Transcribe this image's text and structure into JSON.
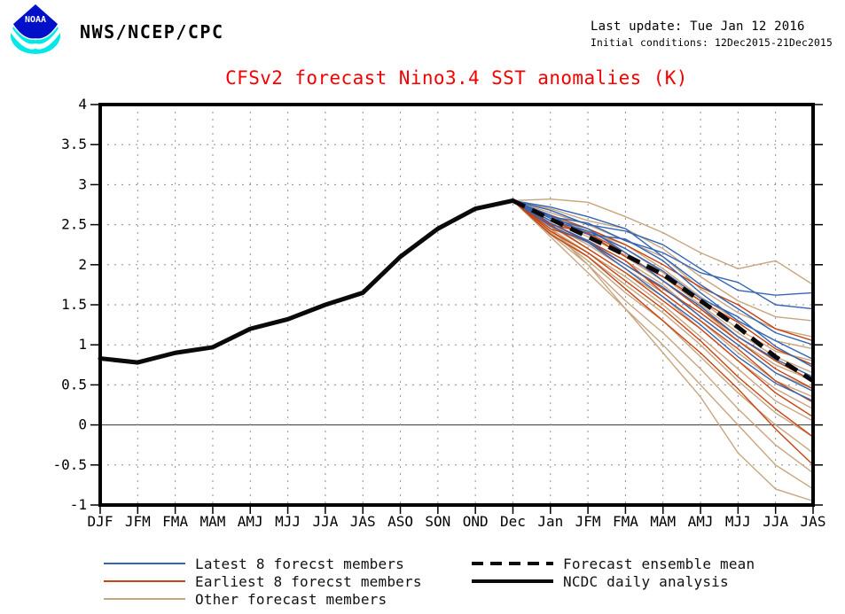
{
  "header": {
    "logo_text": "NOAA",
    "agency": "NWS/NCEP/CPC",
    "last_update": "Last update: Tue Jan 12 2016",
    "initial_conditions": "Initial conditions: 12Dec2015-21Dec2015"
  },
  "chart_data": {
    "type": "line",
    "title": "CFSv2 forecast Nino3.4 SST anomalies (K)",
    "title_color": "#f40000",
    "ylabel": "",
    "xlabel": "",
    "ylim": [
      -1,
      4
    ],
    "grid": true,
    "categories": [
      "DJF",
      "JFM",
      "FMA",
      "MAM",
      "AMJ",
      "MJJ",
      "JJA",
      "JAS",
      "ASO",
      "SON",
      "OND",
      "Dec",
      "Jan",
      "JFM",
      "FMA",
      "MAM",
      "AMJ",
      "MJJ",
      "JJA",
      "JAS"
    ],
    "ytick_values": [
      4,
      3.5,
      3,
      2.5,
      2,
      1.5,
      1,
      0.5,
      0,
      -0.5,
      -1
    ],
    "ytick_labels": [
      "4",
      "3.5",
      "3",
      "2.5",
      "2",
      "1.5",
      "1",
      "0.5",
      "0",
      "-0.5",
      "-1"
    ],
    "forecast_start_index": 11,
    "observed": {
      "name": "NCDC daily analysis",
      "color": "#0a0a0a",
      "start_index": 0,
      "values": [
        0.83,
        0.78,
        0.9,
        0.97,
        1.2,
        1.32,
        1.5,
        1.65,
        2.1,
        2.45,
        2.7,
        2.8
      ]
    },
    "mean": {
      "name": "Forecast ensemble mean",
      "color": "#0a0a0a",
      "dashed": true,
      "values": [
        2.8,
        2.57,
        2.35,
        2.12,
        1.88,
        1.55,
        1.22,
        0.85,
        0.55
      ]
    },
    "members": {
      "other": {
        "name": "Other forecast members",
        "color": "#c7a57f",
        "series": [
          [
            2.8,
            2.82,
            2.78,
            2.6,
            2.4,
            2.15,
            1.95,
            2.05,
            1.75
          ],
          [
            2.8,
            2.7,
            2.55,
            2.45,
            2.2,
            1.85,
            1.55,
            1.35,
            1.3
          ],
          [
            2.8,
            2.65,
            2.5,
            2.3,
            2.1,
            1.7,
            1.4,
            1.2,
            1.1
          ],
          [
            2.8,
            2.6,
            2.42,
            2.25,
            1.95,
            1.6,
            1.3,
            1.05,
            0.95
          ],
          [
            2.8,
            2.62,
            2.45,
            2.2,
            1.9,
            1.55,
            1.2,
            0.92,
            0.8
          ],
          [
            2.8,
            2.55,
            2.35,
            2.12,
            1.85,
            1.5,
            1.15,
            0.85,
            0.65
          ],
          [
            2.8,
            2.58,
            2.4,
            2.1,
            1.8,
            1.45,
            1.05,
            0.75,
            0.55
          ],
          [
            2.8,
            2.52,
            2.3,
            2.05,
            1.75,
            1.35,
            1.0,
            0.65,
            0.45
          ],
          [
            2.8,
            2.5,
            2.25,
            1.95,
            1.65,
            1.3,
            0.9,
            0.55,
            0.35
          ],
          [
            2.8,
            2.48,
            2.2,
            1.9,
            1.6,
            1.2,
            0.8,
            0.45,
            0.2
          ],
          [
            2.8,
            2.45,
            2.15,
            1.85,
            1.5,
            1.1,
            0.7,
            0.3,
            0.05
          ],
          [
            2.8,
            2.42,
            2.1,
            1.75,
            1.4,
            1.0,
            0.55,
            0.15,
            -0.15
          ],
          [
            2.8,
            2.4,
            2.05,
            1.65,
            1.3,
            0.85,
            0.4,
            0.0,
            -0.35
          ],
          [
            2.8,
            2.38,
            2.0,
            1.55,
            1.15,
            0.7,
            0.2,
            -0.25,
            -0.6
          ],
          [
            2.8,
            2.35,
            1.9,
            1.45,
            1.0,
            0.5,
            0.0,
            -0.5,
            -0.8
          ],
          [
            2.8,
            2.45,
            2.0,
            1.45,
            0.9,
            0.35,
            -0.35,
            -0.8,
            -0.95
          ]
        ]
      },
      "earliest": {
        "name": "Earliest 8 forecst members",
        "color": "#c8430f",
        "series": [
          [
            2.8,
            2.62,
            2.45,
            2.25,
            2.0,
            1.72,
            1.5,
            1.2,
            1.05
          ],
          [
            2.8,
            2.55,
            2.38,
            2.1,
            1.85,
            1.55,
            1.28,
            0.95,
            0.75
          ],
          [
            2.8,
            2.5,
            2.4,
            2.15,
            1.8,
            1.45,
            1.1,
            0.8,
            0.55
          ],
          [
            2.8,
            2.52,
            2.28,
            2.0,
            1.7,
            1.4,
            1.05,
            0.7,
            0.45
          ],
          [
            2.8,
            2.45,
            2.3,
            2.05,
            1.65,
            1.3,
            0.95,
            0.55,
            0.28
          ],
          [
            2.8,
            2.5,
            2.2,
            1.9,
            1.55,
            1.2,
            0.8,
            0.4,
            0.1
          ],
          [
            2.8,
            2.42,
            2.15,
            1.8,
            1.45,
            1.05,
            0.6,
            0.2,
            -0.15
          ],
          [
            2.8,
            2.38,
            2.1,
            1.7,
            1.3,
            0.9,
            0.45,
            -0.05,
            -0.5
          ]
        ]
      },
      "latest": {
        "name": "Latest 8 forecst members",
        "color": "#3465b4",
        "series": [
          [
            2.8,
            2.68,
            2.5,
            2.42,
            2.25,
            1.95,
            1.68,
            1.62,
            1.65
          ],
          [
            2.8,
            2.6,
            2.52,
            2.3,
            2.15,
            1.9,
            1.78,
            1.5,
            1.45
          ],
          [
            2.8,
            2.72,
            2.6,
            2.45,
            2.1,
            1.75,
            1.45,
            1.15,
            1.0
          ],
          [
            2.8,
            2.62,
            2.38,
            2.32,
            2.05,
            1.65,
            1.3,
            1.05,
            0.82
          ],
          [
            2.8,
            2.55,
            2.42,
            2.2,
            1.92,
            1.58,
            1.35,
            0.98,
            0.72
          ],
          [
            2.8,
            2.58,
            2.45,
            2.15,
            1.8,
            1.48,
            1.1,
            0.82,
            0.6
          ],
          [
            2.8,
            2.52,
            2.3,
            2.0,
            1.72,
            1.35,
            1.0,
            0.65,
            0.42
          ],
          [
            2.8,
            2.48,
            2.28,
            1.95,
            1.6,
            1.25,
            0.85,
            0.52,
            0.3
          ]
        ]
      }
    },
    "colors": {
      "grid": "#8f8f8f",
      "zero_line": "#333333",
      "frame": "#000000",
      "axis_text": "#000000"
    }
  },
  "legend": {
    "items_left": [
      {
        "label": "Latest 8 forecst members",
        "color": "#3465b4",
        "style": "thin"
      },
      {
        "label": "Earliest 8 forecst members",
        "color": "#c8430f",
        "style": "thin"
      },
      {
        "label": "Other forecast members",
        "color": "#c7a57f",
        "style": "thin"
      }
    ],
    "items_right": [
      {
        "label": "Forecast ensemble mean",
        "color": "#0a0a0a",
        "style": "thick-dashed"
      },
      {
        "label": "NCDC daily analysis",
        "color": "#0a0a0a",
        "style": "thick"
      }
    ]
  }
}
